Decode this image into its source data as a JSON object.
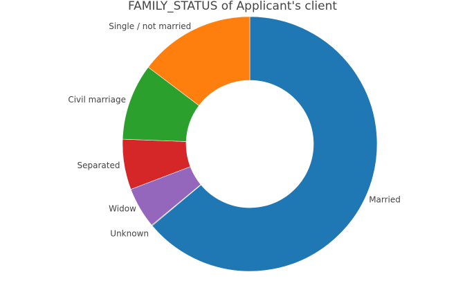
{
  "chart_data": {
    "type": "pie",
    "title": "FAMILY_STATUS of Applicant's client",
    "hole": true,
    "direction": "clockwise",
    "start": "top",
    "categories": [
      "Married",
      "Unknown",
      "Widow",
      "Separated",
      "Civil marriage",
      "Single / not married"
    ],
    "values": [
      63.9,
      0.1,
      5.2,
      6.4,
      9.7,
      14.7
    ],
    "colors": [
      "#1f77b4",
      "#8c564b",
      "#9467bd",
      "#d62728",
      "#2ca02c",
      "#ff7f0e"
    ]
  }
}
